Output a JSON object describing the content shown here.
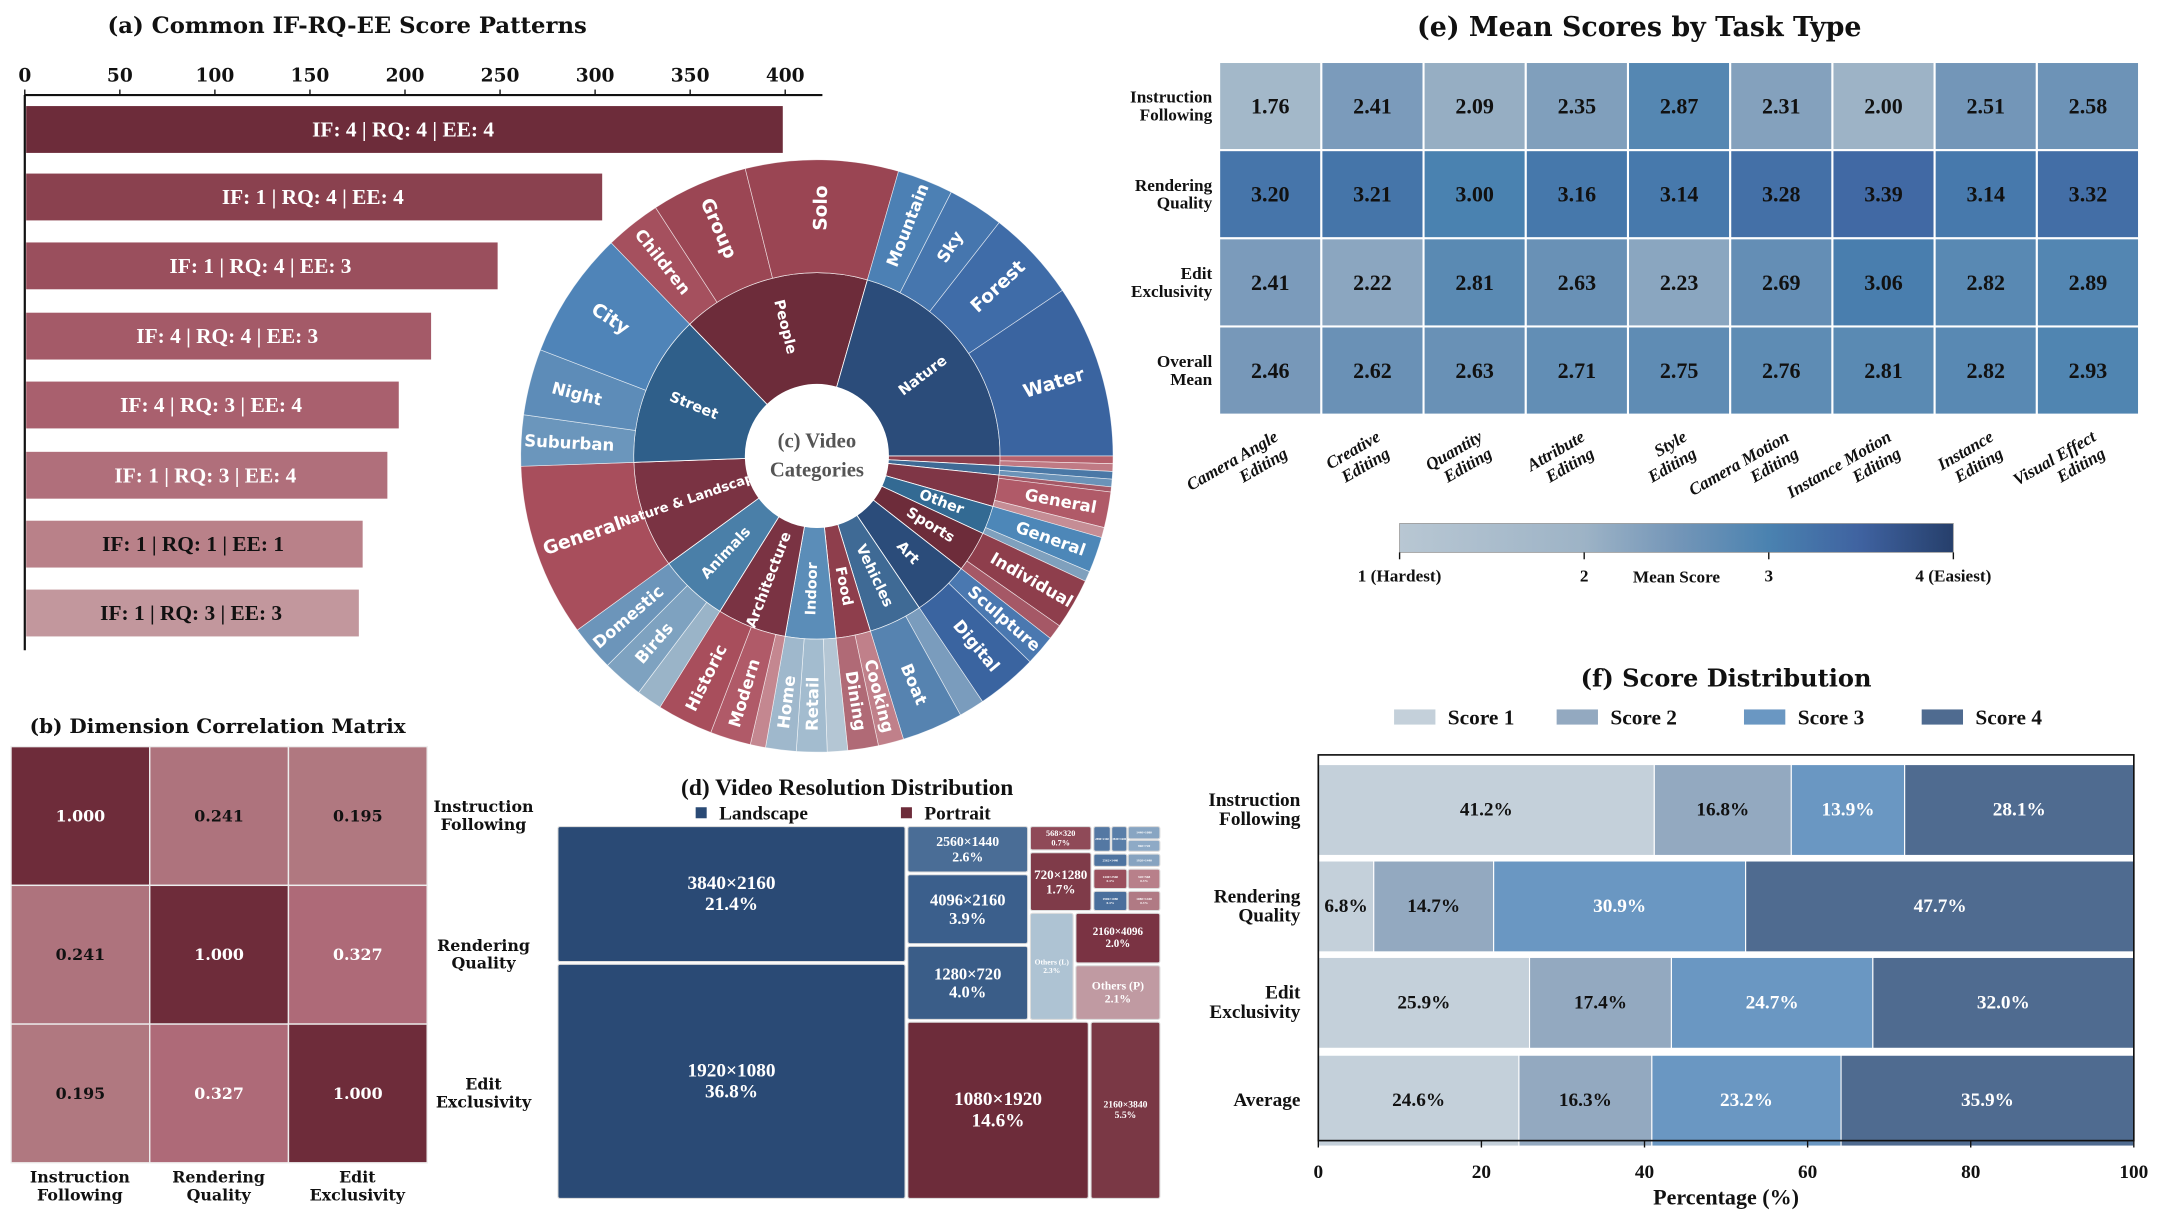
{
  "chart_data": [
    {
      "type": "bar",
      "orientation": "horizontal",
      "title": "(a) Common IF-RQ-EE Score Patterns",
      "categories": [
        "IF: 4 | RQ: 4 | EE: 4",
        "IF: 1 | RQ: 4 | EE: 4",
        "IF: 1 | RQ: 4 | EE: 3",
        "IF: 4 | RQ: 4 | EE: 3",
        "IF: 4 | RQ: 3 | EE: 4",
        "IF: 1 | RQ: 3 | EE: 4",
        "IF: 1 | RQ: 1 | EE: 1",
        "IF: 1 | RQ: 3 | EE: 3"
      ],
      "values": [
        398,
        303,
        248,
        213,
        196,
        190,
        177,
        175
      ],
      "xlim": [
        0,
        420
      ],
      "xticks": [
        "0",
        "50",
        "100",
        "150",
        "200",
        "250",
        "300",
        "350",
        "400"
      ],
      "xaxis_position": "top",
      "colors": [
        "#6d2c3a",
        "#8a414f",
        "#9a4f5d",
        "#a45a68",
        "#a9606e",
        "#b06f7b",
        "#b98189",
        "#c2979d"
      ]
    },
    {
      "type": "heatmap",
      "title": "(b) Dimension Correlation Matrix",
      "row_labels": [
        [
          "Instruction",
          "Following"
        ],
        [
          "Rendering",
          "Quality"
        ],
        [
          "Edit",
          "Exclusivity"
        ]
      ],
      "col_labels": [
        [
          "Instruction",
          "Following"
        ],
        [
          "Rendering",
          "Quality"
        ],
        [
          "Edit",
          "Exclusivity"
        ]
      ],
      "values": [
        [
          "1.000",
          "0.241",
          "0.195"
        ],
        [
          "0.241",
          "1.000",
          "0.327"
        ],
        [
          "0.195",
          "0.327",
          "1.000"
        ]
      ],
      "colors": [
        [
          "#6e2c3a",
          "#ae737d",
          "#b07880"
        ],
        [
          "#ae737d",
          "#6e2c3a",
          "#ae6a78"
        ],
        [
          "#b07880",
          "#ae6a78",
          "#6e2c3a"
        ]
      ]
    },
    {
      "type": "sunburst",
      "title_lines": [
        "(c) Video",
        "Categories"
      ],
      "unit": "degrees of circle",
      "start_angle": -44,
      "groups": [
        {
          "label": "People",
          "value": 60,
          "color": "#6d2c3a",
          "children": [
            {
              "label": "Children",
              "value": 11,
              "color": "#a5505e"
            },
            {
              "label": "Group",
              "value": 19,
              "color": "#9b4654"
            },
            {
              "label": "Solo",
              "value": 30,
              "color": "#9a4553"
            }
          ]
        },
        {
          "label": "Nature",
          "value": 74,
          "color": "#2b4c7a",
          "children": [
            {
              "label": "Mountain",
              "value": 11,
              "color": "#4c80b4"
            },
            {
              "label": "Sky",
              "value": 11,
              "color": "#4676ae"
            },
            {
              "label": "Forest",
              "value": 18,
              "color": "#3f6ca8"
            },
            {
              "label": "Water",
              "value": 34,
              "color": "#3a64a0"
            }
          ]
        },
        {
          "label": "",
          "value": 3,
          "color": "#8e3e4c",
          "children": [
            {
              "label": "",
              "value": 1.5,
              "color": "#b5606c"
            },
            {
              "label": "",
              "value": 1.5,
              "color": "#c07a84"
            }
          ]
        },
        {
          "label": "",
          "value": 3,
          "color": "#3f6a95",
          "children": [
            {
              "label": "",
              "value": 1.5,
              "color": "#4a78a6"
            },
            {
              "label": "",
              "value": 1.5,
              "color": "#6b93b8"
            }
          ]
        },
        {
          "label": "",
          "value": 10,
          "color": "#7f3646",
          "children": [
            {
              "label": "",
              "value": 1,
              "color": "#a55866"
            },
            {
              "label": "General",
              "value": 7,
              "color": "#b05a68"
            },
            {
              "label": "",
              "value": 2,
              "color": "#c58d95"
            }
          ]
        },
        {
          "label": "Other",
          "value": 9,
          "color": "#336a93",
          "children": [
            {
              "label": "General",
              "value": 7,
              "color": "#4d87b8"
            },
            {
              "label": "",
              "value": 2,
              "color": "#7fa0bd"
            }
          ]
        },
        {
          "label": "Sports",
          "value": 13,
          "color": "#6d2c3a",
          "children": [
            {
              "label": "Individual",
              "value": 10,
              "color": "#8e3e4c"
            },
            {
              "label": "",
              "value": 3,
              "color": "#a55866"
            }
          ]
        },
        {
          "label": "Art",
          "value": 18,
          "color": "#2b4c7a",
          "children": [
            {
              "label": "Sculpture",
              "value": 6,
              "color": "#4a78b0"
            },
            {
              "label": "Digital",
              "value": 12,
              "color": "#3a64a0"
            }
          ]
        },
        {
          "label": "Vehicles",
          "value": 17,
          "color": "#3f6a95",
          "children": [
            {
              "label": "",
              "value": 5,
              "color": "#7a9cbd"
            },
            {
              "label": "Boat",
              "value": 12,
              "color": "#5683b0"
            }
          ]
        },
        {
          "label": "Food",
          "value": 11,
          "color": "#8e3e4c",
          "children": [
            {
              "label": "Cooking",
              "value": 5,
              "color": "#c0808a"
            },
            {
              "label": "Dining",
              "value": 6,
              "color": "#b06a76"
            }
          ]
        },
        {
          "label": "Indoor",
          "value": 16,
          "color": "#5b8db8",
          "children": [
            {
              "label": "",
              "value": 4,
              "color": "#b4c6d4"
            },
            {
              "label": "Retail",
              "value": 6,
              "color": "#a3bccf"
            },
            {
              "label": "Home",
              "value": 6,
              "color": "#9fb8cc"
            }
          ]
        },
        {
          "label": "Architecture",
          "value": 22,
          "color": "#7a3343",
          "children": [
            {
              "label": "",
              "value": 3,
              "color": "#c48790"
            },
            {
              "label": "Modern",
              "value": 8,
              "color": "#b05a68"
            },
            {
              "label": "Historic",
              "value": 11,
              "color": "#a84e5c"
            }
          ]
        },
        {
          "label": "Animals",
          "value": 22,
          "color": "#4a7fa8",
          "children": [
            {
              "label": "",
              "value": 5,
              "color": "#9ab4c8"
            },
            {
              "label": "Birds",
              "value": 8,
              "color": "#7ea2c0"
            },
            {
              "label": "Domestic",
              "value": 9,
              "color": "#6c95ba"
            }
          ]
        },
        {
          "label": "Nature & Landscape",
          "value": 34,
          "color": "#7a3343",
          "children": [
            {
              "label": "General",
              "value": 34,
              "color": "#a84e5c"
            }
          ]
        },
        {
          "label": "Street",
          "value": 48,
          "color": "#2f5f8a",
          "children": [
            {
              "label": "Suburban",
              "value": 10,
              "color": "#6b96bc"
            },
            {
              "label": "Night",
              "value": 13,
              "color": "#5d8cb8"
            },
            {
              "label": "City",
              "value": 25,
              "color": "#4f84b8"
            }
          ]
        }
      ]
    },
    {
      "type": "treemap",
      "title": "(d) Video Resolution Distribution",
      "legend": [
        {
          "label": "Landscape",
          "color": "#2a4a75"
        },
        {
          "label": "Portrait",
          "color": "#6d2c3a"
        }
      ],
      "items": [
        {
          "label": "3840×2160",
          "pct": "21.4%",
          "orientation": "Landscape",
          "color": "#2a4a75"
        },
        {
          "label": "1920×1080",
          "pct": "36.8%",
          "orientation": "Landscape",
          "color": "#2a4a75"
        },
        {
          "label": "2560×1440",
          "pct": "2.6%",
          "orientation": "Landscape",
          "color": "#4a6d96"
        },
        {
          "label": "4096×2160",
          "pct": "3.9%",
          "orientation": "Landscape",
          "color": "#3b5f8c"
        },
        {
          "label": "1280×720",
          "pct": "4.0%",
          "orientation": "Landscape",
          "color": "#3a5d88"
        },
        {
          "label": "1080×1920",
          "pct": "14.6%",
          "orientation": "Portrait",
          "color": "#6d2c3a"
        },
        {
          "label": "2160×3840",
          "pct": "5.5%",
          "orientation": "Portrait",
          "color": "#7a3845"
        },
        {
          "label": "568×320",
          "pct": "0.7%",
          "orientation": "Portrait",
          "color": "#8f4a58"
        },
        {
          "label": "720×1280",
          "pct": "1.7%",
          "orientation": "Portrait",
          "color": "#7f3b49"
        },
        {
          "label": "Others (L)",
          "pct": "2.3%",
          "orientation": "Landscape",
          "color": "#aec3d3"
        },
        {
          "label": "2160×4096",
          "pct": "2.0%",
          "orientation": "Portrait",
          "color": "#7a3343"
        },
        {
          "label": "Others (P)",
          "pct": "2.1%",
          "orientation": "Portrait",
          "color": "#c09aa2"
        },
        {
          "label": "2880×2160",
          "pct": "",
          "orientation": "Landscape",
          "color": "#5478a3"
        },
        {
          "label": "3840×1600",
          "pct": "",
          "orientation": "Landscape",
          "color": "#5a7ea8"
        },
        {
          "label": "1440×1080",
          "pct": "",
          "orientation": "Landscape",
          "color": "#88a5c2"
        },
        {
          "label": "960×720",
          "pct": "",
          "orientation": "Landscape",
          "color": "#8eaac6"
        },
        {
          "label": "2562×1440",
          "pct": "",
          "orientation": "Landscape",
          "color": "#4f74a0"
        },
        {
          "label": "1920×1440",
          "pct": "",
          "orientation": "Landscape",
          "color": "#86a3c0"
        },
        {
          "label": "1440×2560",
          "pct": "0.4%",
          "orientation": "Portrait",
          "color": "#9a4f5d"
        },
        {
          "label": "320×568",
          "pct": "0.3%",
          "orientation": "Portrait",
          "color": "#b8808a"
        },
        {
          "label": "1906×1080",
          "pct": "0.4%",
          "orientation": "Landscape",
          "color": "#4a6f9c"
        },
        {
          "label": "1080×1440",
          "pct": "0.3%",
          "orientation": "Portrait",
          "color": "#b07a84"
        }
      ]
    },
    {
      "type": "heatmap",
      "title": "(e) Mean Scores by Task Type",
      "row_labels": [
        [
          "Instruction",
          "Following"
        ],
        [
          "Rendering",
          "Quality"
        ],
        [
          "Edit",
          "Exclusivity"
        ],
        [
          "Overall",
          "Mean"
        ]
      ],
      "col_labels": [
        [
          "Camera Angle",
          "Editing"
        ],
        [
          "Creative",
          "Editing"
        ],
        [
          "Quantity",
          "Editing"
        ],
        [
          "Attribute",
          "Editing"
        ],
        [
          "Style",
          "Editing"
        ],
        [
          "Camera Motion",
          "Editing"
        ],
        [
          "Instance Motion",
          "Editing"
        ],
        [
          "Instance",
          "Editing"
        ],
        [
          "Visual Effect",
          "Editing"
        ]
      ],
      "values": [
        [
          1.76,
          2.41,
          2.09,
          2.35,
          2.87,
          2.31,
          2.0,
          2.51,
          2.58
        ],
        [
          3.2,
          3.21,
          3.0,
          3.16,
          3.14,
          3.28,
          3.39,
          3.14,
          3.32
        ],
        [
          2.41,
          2.22,
          2.81,
          2.63,
          2.23,
          2.69,
          3.06,
          2.82,
          2.89
        ],
        [
          2.46,
          2.62,
          2.63,
          2.71,
          2.75,
          2.76,
          2.81,
          2.82,
          2.93
        ]
      ],
      "colorbar": {
        "label": "Mean Score",
        "range": [
          1,
          4
        ],
        "ticks": [
          "1 (Hardest)",
          "2",
          "3",
          "4 (Easiest)"
        ],
        "colors": [
          "#b8c7d3",
          "#9db3c6",
          "#7496b8",
          "#4a82b0",
          "#3f62a0",
          "#263f6b"
        ]
      }
    },
    {
      "type": "bar",
      "stacked": true,
      "orientation": "horizontal",
      "title": "(f) Score Distribution",
      "categories": [
        [
          "Instruction",
          "Following"
        ],
        [
          "Rendering",
          "Quality"
        ],
        [
          "Edit",
          "Exclusivity"
        ],
        [
          "Average"
        ]
      ],
      "series": [
        {
          "name": "Score 1",
          "color": "#c4d0da",
          "values": [
            41.2,
            6.8,
            25.9,
            24.6
          ],
          "labels": [
            "41.2%",
            "6.8%",
            "25.9%",
            "24.6%"
          ]
        },
        {
          "name": "Score 2",
          "color": "#93a9c0",
          "values": [
            16.8,
            14.7,
            17.4,
            16.3
          ],
          "labels": [
            "16.8%",
            "14.7%",
            "17.4%",
            "16.3%"
          ]
        },
        {
          "name": "Score 3",
          "color": "#6a97c2",
          "values": [
            13.9,
            30.9,
            24.7,
            23.2
          ],
          "labels": [
            "13.9%",
            "30.9%",
            "24.7%",
            "23.2%"
          ]
        },
        {
          "name": "Score 4",
          "color": "#4f6b90",
          "values": [
            28.1,
            47.7,
            32.0,
            35.9
          ],
          "labels": [
            "28.1%",
            "47.7%",
            "32.0%",
            "35.9%"
          ]
        }
      ],
      "xlabel": "Percentage (%)",
      "xlim": [
        0,
        100
      ],
      "xticks": [
        "0",
        "20",
        "40",
        "60",
        "80",
        "100"
      ],
      "legend_position": "top"
    }
  ]
}
